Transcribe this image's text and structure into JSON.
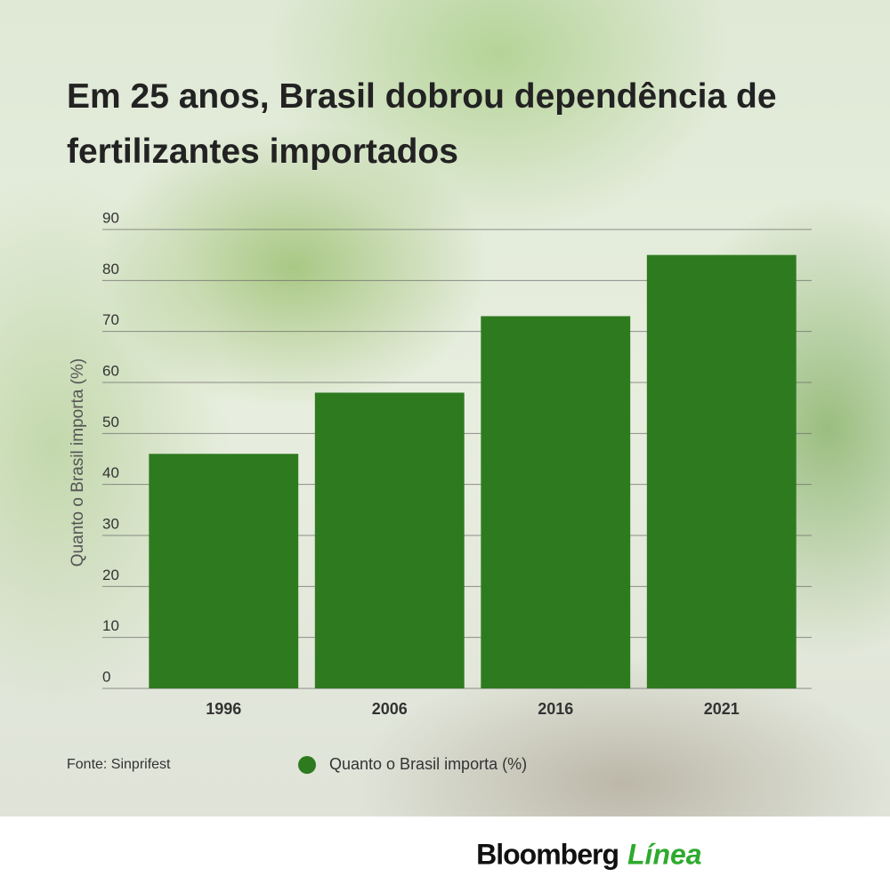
{
  "chart_data": {
    "type": "bar",
    "title": "Em 25 anos, Brasil dobrou dependência de fertilizantes importados",
    "y_label": "Quanto o Brasil importa (%)",
    "categories": [
      "1996",
      "2006",
      "2016",
      "2021"
    ],
    "series": [
      {
        "name": "Quanto o Brasil importa (%)",
        "color": "#2e7b1f",
        "values": [
          46,
          58,
          73,
          85
        ]
      }
    ],
    "ylim": [
      0,
      90
    ],
    "yticks": [
      0,
      10,
      20,
      30,
      40,
      50,
      60,
      70,
      80,
      90
    ],
    "grid": true,
    "source": "Fonte: Sinprifest"
  },
  "brand": {
    "name": "Bloomberg",
    "suffix": "Línea"
  }
}
